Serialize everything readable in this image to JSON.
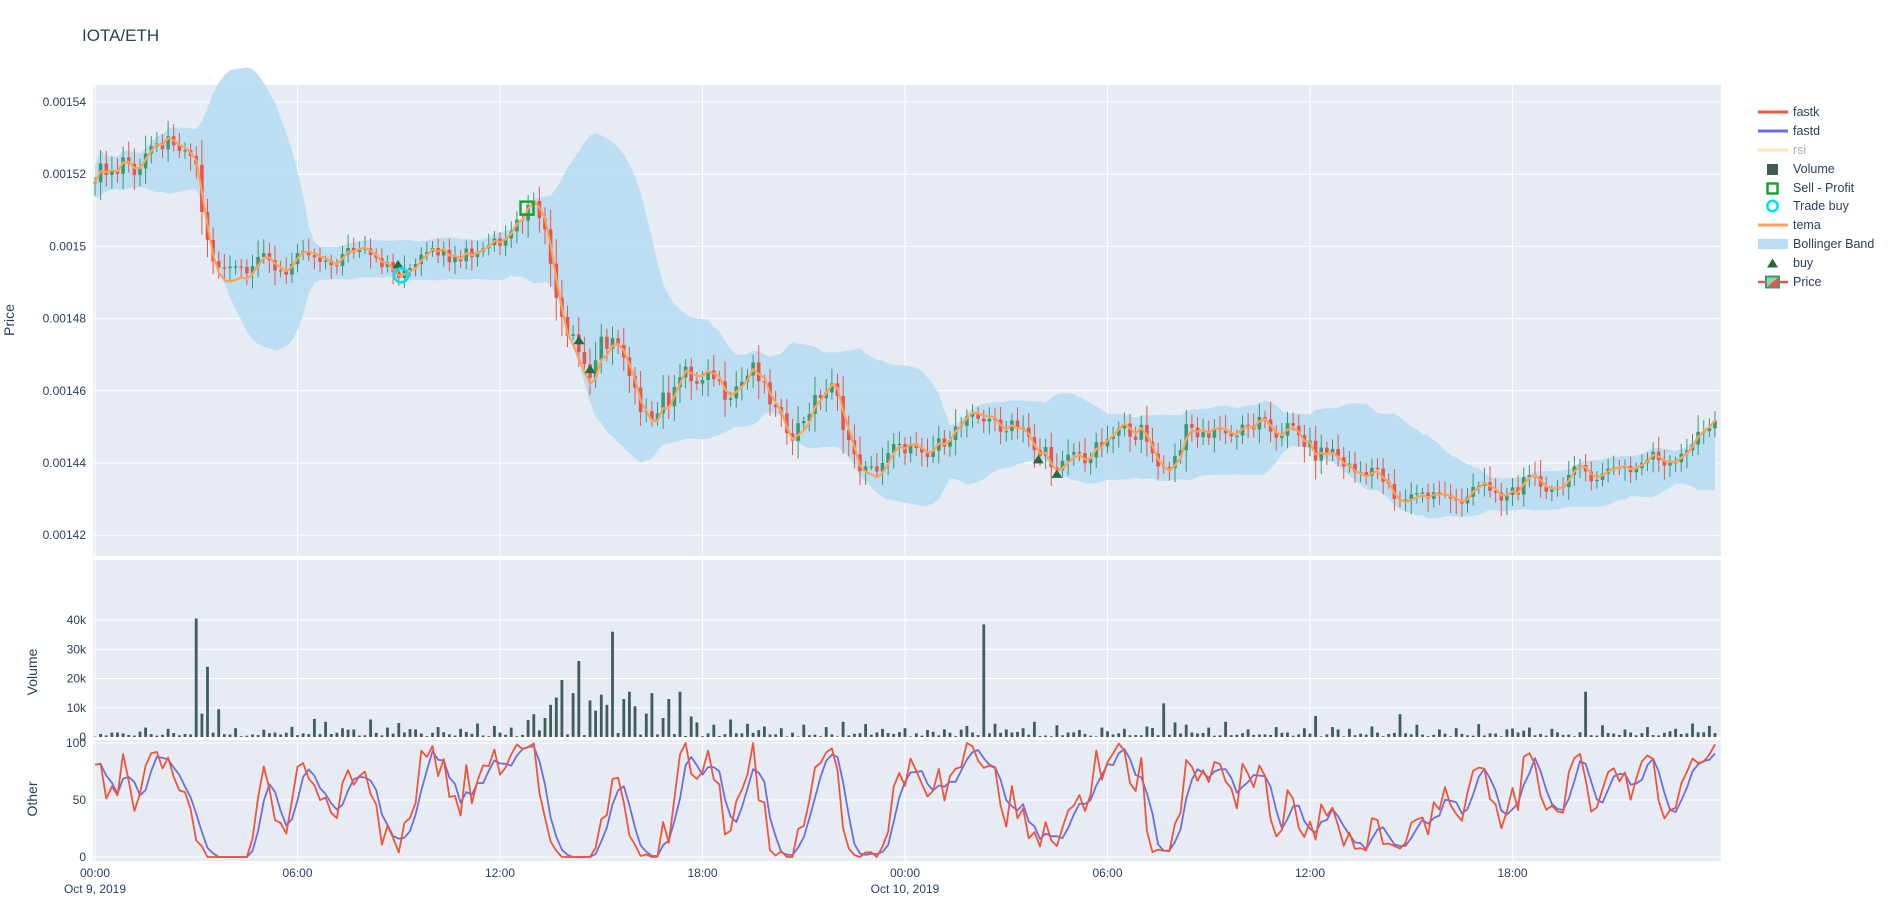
{
  "title": "IOTA/ETH",
  "colors": {
    "background": "#ffffff",
    "plot_bg": "#e7ebf3",
    "grid": "#ffffff",
    "axis_text": "#2a3f5f",
    "candle_up": "#3d9970",
    "candle_down": "#e8554a",
    "tema": "#ffa15a",
    "bollinger": "#b9dcf2",
    "volume_bar": "#3f5e58",
    "fastk": "#ef553b",
    "fastd": "#6b6fe0",
    "rsi": "#ffe5ba",
    "buy_marker": "#2b6a3f",
    "sell_marker": "#0fa32f",
    "trade_buy_marker": "#00e4f0"
  },
  "legend": [
    {
      "label": "fastk",
      "glyph": "line",
      "color": "#ef553b",
      "muted": false
    },
    {
      "label": "fastd",
      "glyph": "line",
      "color": "#6b6fe0",
      "muted": false
    },
    {
      "label": "rsi",
      "glyph": "line",
      "color": "#ffe5ba",
      "muted": true
    },
    {
      "label": "Volume",
      "glyph": "square",
      "color": "#3f5e58",
      "muted": false
    },
    {
      "label": "Sell - Profit",
      "glyph": "open-square",
      "color": "#0fa32f",
      "muted": false
    },
    {
      "label": "Trade buy",
      "glyph": "open-circle",
      "color": "#00e4f0",
      "muted": false
    },
    {
      "label": "tema",
      "glyph": "line",
      "color": "#ffa15a",
      "muted": false
    },
    {
      "label": "Bollinger Band",
      "glyph": "band",
      "color": "#b9dcf2",
      "muted": false
    },
    {
      "label": "buy",
      "glyph": "triangle",
      "color": "#2b6a3f",
      "muted": false
    },
    {
      "label": "Price",
      "glyph": "candle",
      "color": "#3d9970",
      "muted": false
    }
  ],
  "x_axis": {
    "range_hours": [
      -0.06,
      48.2
    ],
    "ticks": [
      {
        "t": 0,
        "label": "00:00"
      },
      {
        "t": 6,
        "label": "06:00"
      },
      {
        "t": 12,
        "label": "12:00"
      },
      {
        "t": 18,
        "label": "18:00"
      },
      {
        "t": 24,
        "label": "00:00"
      },
      {
        "t": 30,
        "label": "06:00"
      },
      {
        "t": 36,
        "label": "12:00"
      },
      {
        "t": 42,
        "label": "18:00"
      }
    ],
    "date_labels": [
      {
        "t": 0,
        "label": "Oct 9, 2019"
      },
      {
        "t": 24,
        "label": "Oct 10, 2019"
      }
    ]
  },
  "chart_data": [
    {
      "type": "candlestick",
      "name": "Price",
      "ylabel": "Price",
      "ylim": [
        0.001414,
        0.0015447
      ],
      "yticks": [
        {
          "v": 0.00154,
          "label": "0.00154"
        },
        {
          "v": 0.00152,
          "label": "0.00152"
        },
        {
          "v": 0.0015,
          "label": "0.0015"
        },
        {
          "v": 0.00148,
          "label": "0.00148"
        },
        {
          "v": 0.00146,
          "label": "0.00146"
        },
        {
          "v": 0.00144,
          "label": "0.00144"
        },
        {
          "v": 0.00142,
          "label": "0.00142"
        }
      ],
      "candle_interval_minutes": 10,
      "close_keypoints": [
        [
          0,
          0.00152
        ],
        [
          0.3,
          0.001522
        ],
        [
          0.6,
          0.00152
        ],
        [
          0.9,
          0.001523
        ],
        [
          1.2,
          0.001521
        ],
        [
          1.5,
          0.001524
        ],
        [
          1.8,
          0.001527
        ],
        [
          2.1,
          0.001529
        ],
        [
          2.4,
          0.001526
        ],
        [
          2.7,
          0.001528
        ],
        [
          3.0,
          0.001522
        ],
        [
          3.2,
          0.001508
        ],
        [
          3.4,
          0.001497
        ],
        [
          3.7,
          0.001493
        ],
        [
          4.0,
          0.001496
        ],
        [
          4.4,
          0.001494
        ],
        [
          4.8,
          0.001497
        ],
        [
          5.2,
          0.001495
        ],
        [
          5.6,
          0.001493
        ],
        [
          6.0,
          0.001496
        ],
        [
          6.4,
          0.001498
        ],
        [
          6.8,
          0.001494
        ],
        [
          7.2,
          0.001496
        ],
        [
          7.6,
          0.001499
        ],
        [
          8.0,
          0.001501
        ],
        [
          8.4,
          0.001497
        ],
        [
          8.8,
          0.001493
        ],
        [
          9.1,
          0.001491
        ],
        [
          9.4,
          0.001495
        ],
        [
          9.7,
          0.001499
        ],
        [
          10.0,
          0.001501
        ],
        [
          10.4,
          0.001497
        ],
        [
          10.8,
          0.0015
        ],
        [
          11.2,
          0.001498
        ],
        [
          11.6,
          0.001501
        ],
        [
          12.0,
          0.001503
        ],
        [
          12.4,
          0.001506
        ],
        [
          12.8,
          0.00151
        ],
        [
          13.0,
          0.001514
        ],
        [
          13.2,
          0.001509
        ],
        [
          13.4,
          0.001501
        ],
        [
          13.6,
          0.00149
        ],
        [
          13.9,
          0.001479
        ],
        [
          14.2,
          0.001473
        ],
        [
          14.5,
          0.001468
        ],
        [
          14.7,
          0.001463
        ],
        [
          15.0,
          0.001471
        ],
        [
          15.3,
          0.001475
        ],
        [
          15.6,
          0.00147
        ],
        [
          15.9,
          0.001461
        ],
        [
          16.2,
          0.001455
        ],
        [
          16.5,
          0.001452
        ],
        [
          16.8,
          0.001457
        ],
        [
          17.1,
          0.001462
        ],
        [
          17.5,
          0.001465
        ],
        [
          17.9,
          0.001461
        ],
        [
          18.3,
          0.001465
        ],
        [
          18.7,
          0.001459
        ],
        [
          19.1,
          0.001462
        ],
        [
          19.5,
          0.001466
        ],
        [
          19.9,
          0.001459
        ],
        [
          20.3,
          0.001452
        ],
        [
          20.7,
          0.001448
        ],
        [
          21.1,
          0.001454
        ],
        [
          21.5,
          0.001459
        ],
        [
          21.9,
          0.001461
        ],
        [
          22.2,
          0.00145
        ],
        [
          22.5,
          0.001441
        ],
        [
          22.9,
          0.001437
        ],
        [
          23.3,
          0.00144
        ],
        [
          23.7,
          0.001443
        ],
        [
          24.1,
          0.001445
        ],
        [
          24.5,
          0.001441
        ],
        [
          24.9,
          0.001444
        ],
        [
          25.3,
          0.001448
        ],
        [
          25.8,
          0.001451
        ],
        [
          26.1,
          0.001452
        ],
        [
          26.5,
          0.001453
        ],
        [
          26.8,
          0.001448
        ],
        [
          27.1,
          0.001452
        ],
        [
          27.5,
          0.00145
        ],
        [
          27.9,
          0.001441
        ],
        [
          28.2,
          0.001444
        ],
        [
          28.5,
          0.001437
        ],
        [
          29.0,
          0.001443
        ],
        [
          29.4,
          0.001441
        ],
        [
          29.8,
          0.001445
        ],
        [
          30.2,
          0.001448
        ],
        [
          30.6,
          0.00145
        ],
        [
          31.0,
          0.001447
        ],
        [
          31.4,
          0.001442
        ],
        [
          31.7,
          0.001438
        ],
        [
          32.1,
          0.001444
        ],
        [
          32.4,
          0.00145
        ],
        [
          32.8,
          0.001447
        ],
        [
          33.2,
          0.00145
        ],
        [
          33.6,
          0.001447
        ],
        [
          34.0,
          0.001449
        ],
        [
          34.5,
          0.001451
        ],
        [
          35.0,
          0.001448
        ],
        [
          35.4,
          0.00145
        ],
        [
          35.8,
          0.001446
        ],
        [
          36.2,
          0.001442
        ],
        [
          36.6,
          0.001444
        ],
        [
          37.0,
          0.00144
        ],
        [
          37.4,
          0.001437
        ],
        [
          37.8,
          0.001439
        ],
        [
          38.2,
          0.001435
        ],
        [
          38.6,
          0.001428
        ],
        [
          39.0,
          0.001432
        ],
        [
          39.4,
          0.00143
        ],
        [
          39.8,
          0.001432
        ],
        [
          40.2,
          0.001429
        ],
        [
          40.6,
          0.001431
        ],
        [
          41.1,
          0.001433
        ],
        [
          41.6,
          0.001431
        ],
        [
          42.1,
          0.001433
        ],
        [
          42.6,
          0.001435
        ],
        [
          43.1,
          0.001433
        ],
        [
          43.6,
          0.001436
        ],
        [
          44.1,
          0.001438
        ],
        [
          44.6,
          0.001436
        ],
        [
          45.1,
          0.00144
        ],
        [
          45.6,
          0.001438
        ],
        [
          46.1,
          0.001442
        ],
        [
          46.6,
          0.00144
        ],
        [
          47.1,
          0.001444
        ],
        [
          47.5,
          0.001447
        ],
        [
          47.9,
          0.001451
        ],
        [
          48.15,
          0.001456
        ]
      ],
      "overlays": {
        "tema_derivation": "triple EMA (span 7) of close",
        "bollinger_derivation": "rolling mean +/- 2.4 sigma (window 20)"
      },
      "markers": {
        "buy": [
          [
            8.98,
            0.001495
          ],
          [
            14.34,
            0.001474
          ],
          [
            14.67,
            0.001466
          ],
          [
            27.95,
            0.001441
          ],
          [
            28.5,
            0.001437
          ]
        ],
        "trade_buy": [
          [
            9.07,
            0.001492
          ]
        ],
        "sell_profit": [
          [
            12.8,
            0.0015106
          ]
        ]
      }
    },
    {
      "type": "bar",
      "name": "Volume",
      "ylabel": "Volume",
      "ylim": [
        0,
        58000
      ],
      "yticks": [
        {
          "v": 40000,
          "label": "40k"
        },
        {
          "v": 30000,
          "label": "30k"
        },
        {
          "v": 20000,
          "label": "20k"
        },
        {
          "v": 10000,
          "label": "10k"
        },
        {
          "v": 0,
          "label": "0"
        }
      ],
      "base_noise_range": [
        150,
        1600
      ],
      "spikes": [
        [
          1.5,
          3200
        ],
        [
          2.1,
          2800
        ],
        [
          3.02,
          40500
        ],
        [
          3.2,
          8000
        ],
        [
          3.35,
          24000
        ],
        [
          3.6,
          9500
        ],
        [
          4.1,
          3000
        ],
        [
          5.0,
          2500
        ],
        [
          5.9,
          3500
        ],
        [
          6.5,
          6200
        ],
        [
          6.8,
          5200
        ],
        [
          7.3,
          3000
        ],
        [
          8.1,
          6000
        ],
        [
          8.6,
          3200
        ],
        [
          9.05,
          4800
        ],
        [
          9.5,
          2600
        ],
        [
          10.2,
          3400
        ],
        [
          10.8,
          2800
        ],
        [
          11.4,
          4600
        ],
        [
          11.9,
          3800
        ],
        [
          12.4,
          3200
        ],
        [
          12.8,
          5800
        ],
        [
          13.0,
          7800
        ],
        [
          13.3,
          6500
        ],
        [
          13.5,
          11000
        ],
        [
          13.7,
          13500
        ],
        [
          13.9,
          19500
        ],
        [
          14.1,
          15000
        ],
        [
          14.34,
          26000
        ],
        [
          14.6,
          12500
        ],
        [
          14.8,
          9000
        ],
        [
          15.0,
          14500
        ],
        [
          15.2,
          11000
        ],
        [
          15.4,
          36000
        ],
        [
          15.6,
          13000
        ],
        [
          15.8,
          15500
        ],
        [
          16.0,
          10500
        ],
        [
          16.3,
          8000
        ],
        [
          16.5,
          15000
        ],
        [
          16.8,
          6500
        ],
        [
          17.0,
          13000
        ],
        [
          17.3,
          15500
        ],
        [
          17.6,
          7000
        ],
        [
          17.9,
          5000
        ],
        [
          18.4,
          4200
        ],
        [
          18.9,
          6000
        ],
        [
          19.4,
          4500
        ],
        [
          19.9,
          3600
        ],
        [
          20.4,
          3000
        ],
        [
          21.0,
          4200
        ],
        [
          21.6,
          3400
        ],
        [
          22.2,
          5200
        ],
        [
          22.8,
          4400
        ],
        [
          23.4,
          2800
        ],
        [
          24.0,
          3000
        ],
        [
          24.6,
          2400
        ],
        [
          25.2,
          2600
        ],
        [
          25.8,
          3800
        ],
        [
          26.37,
          38500
        ],
        [
          26.6,
          4500
        ],
        [
          27.0,
          2600
        ],
        [
          27.5,
          3000
        ],
        [
          27.9,
          5200
        ],
        [
          28.5,
          4000
        ],
        [
          29.2,
          2400
        ],
        [
          29.8,
          3200
        ],
        [
          30.5,
          2800
        ],
        [
          31.1,
          3600
        ],
        [
          31.7,
          11500
        ],
        [
          32.0,
          5000
        ],
        [
          32.4,
          4200
        ],
        [
          33.0,
          3200
        ],
        [
          33.5,
          5200
        ],
        [
          34.2,
          2600
        ],
        [
          35.0,
          3400
        ],
        [
          35.8,
          3000
        ],
        [
          36.1,
          7200
        ],
        [
          36.6,
          3400
        ],
        [
          37.2,
          2800
        ],
        [
          37.8,
          3600
        ],
        [
          38.6,
          7800
        ],
        [
          39.2,
          4200
        ],
        [
          39.8,
          2600
        ],
        [
          40.4,
          3000
        ],
        [
          41.0,
          4400
        ],
        [
          41.8,
          2600
        ],
        [
          42.5,
          3200
        ],
        [
          43.2,
          2800
        ],
        [
          44.1,
          15500
        ],
        [
          44.6,
          4000
        ],
        [
          45.3,
          2600
        ],
        [
          46.0,
          3400
        ],
        [
          46.8,
          2800
        ],
        [
          47.4,
          4600
        ],
        [
          47.9,
          3800
        ],
        [
          48.1,
          5600
        ]
      ]
    },
    {
      "type": "line",
      "name": "Other",
      "ylabel": "Other",
      "ylim": [
        0,
        100
      ],
      "yticks": [
        {
          "v": 100,
          "label": "100"
        },
        {
          "v": 50,
          "label": "50"
        },
        {
          "v": 0,
          "label": "0"
        }
      ],
      "series": [
        {
          "name": "fastk",
          "color": "#ef553b",
          "derivation": "stochastic %K, window 9 candles, clipped to [0,100]"
        },
        {
          "name": "fastd",
          "color": "#6b6fe0",
          "derivation": "SMA(3) of fastk, clipped to [0,100]"
        }
      ]
    }
  ]
}
